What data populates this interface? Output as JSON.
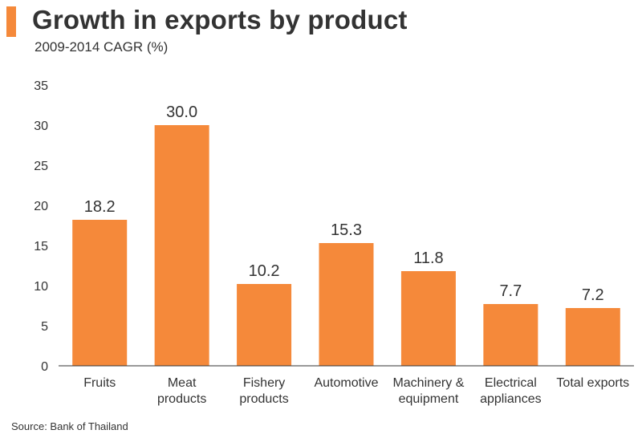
{
  "header": {
    "title": "Growth in exports by product",
    "subtitle": "2009-2014 CAGR (%)"
  },
  "footer": {
    "source": "Source: Bank of Thailand"
  },
  "colors": {
    "accent": "#F5893A",
    "bar": "#F5893A",
    "axis": "#333333",
    "text": "#333333"
  },
  "chart_data": {
    "type": "bar",
    "title": "Growth in exports by product",
    "subtitle": "2009-2014 CAGR (%)",
    "categories": [
      [
        "Fruits"
      ],
      [
        "Meat",
        "products"
      ],
      [
        "Fishery",
        "products"
      ],
      [
        "Automotive"
      ],
      [
        "Machinery &",
        "equipment"
      ],
      [
        "Electrical",
        "appliances"
      ],
      [
        "Total exports"
      ]
    ],
    "values": [
      18.2,
      30.0,
      10.2,
      15.3,
      11.8,
      7.7,
      7.2
    ],
    "value_labels": [
      "18.2",
      "30.0",
      "10.2",
      "15.3",
      "11.8",
      "7.7",
      "7.2"
    ],
    "ylim": [
      0,
      35
    ],
    "yticks": [
      0,
      5,
      10,
      15,
      20,
      25,
      30,
      35
    ],
    "xlabel": "",
    "ylabel": "",
    "grid": false,
    "legend": "none"
  }
}
